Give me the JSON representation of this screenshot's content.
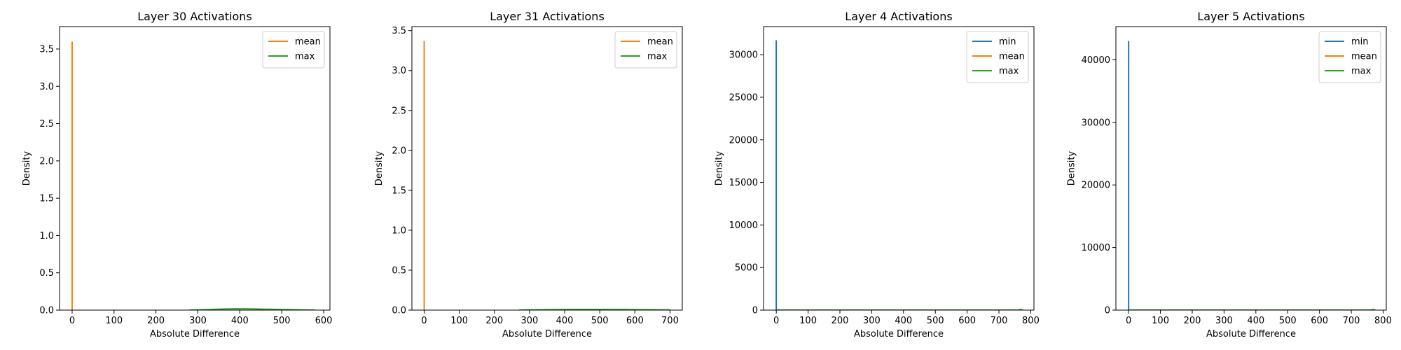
{
  "colors": {
    "min": "#1f77b4",
    "mean": "#ff7f0e",
    "max": "#2ca02c",
    "axes": "#000000",
    "background": "#ffffff"
  },
  "chart_data": [
    {
      "type": "line",
      "title": "Layer 30 Activations",
      "xlabel": "Absolute Difference",
      "ylabel": "Density",
      "xlim": [
        -30,
        615
      ],
      "ylim": [
        0,
        3.8
      ],
      "xticks": [
        0,
        100,
        200,
        300,
        400,
        500,
        600
      ],
      "yticks": [
        0.0,
        0.5,
        1.0,
        1.5,
        2.0,
        2.5,
        3.0,
        3.5
      ],
      "ytick_labels": [
        "0.0",
        "0.5",
        "1.0",
        "1.5",
        "2.0",
        "2.5",
        "3.0",
        "3.5"
      ],
      "legend_position": "upper right",
      "grid": false,
      "series": [
        {
          "name": "mean",
          "color": "#ff7f0e",
          "x": [
            0,
            0,
            0
          ],
          "y": [
            0,
            3.6,
            0
          ]
        },
        {
          "name": "max",
          "color": "#2ca02c",
          "x": [
            280,
            300,
            330,
            360,
            390,
            420,
            460,
            500,
            540,
            580
          ],
          "y": [
            0,
            0.002,
            0.008,
            0.014,
            0.018,
            0.016,
            0.012,
            0.008,
            0.004,
            0
          ]
        }
      ]
    },
    {
      "type": "line",
      "title": "Layer 31 Activations",
      "xlabel": "Absolute Difference",
      "ylabel": "Density",
      "xlim": [
        -35,
        735
      ],
      "ylim": [
        0,
        3.55
      ],
      "xticks": [
        0,
        100,
        200,
        300,
        400,
        500,
        600,
        700
      ],
      "yticks": [
        0.0,
        0.5,
        1.0,
        1.5,
        2.0,
        2.5,
        3.0,
        3.5
      ],
      "ytick_labels": [
        "0.0",
        "0.5",
        "1.0",
        "1.5",
        "2.0",
        "2.5",
        "3.0",
        "3.5"
      ],
      "legend_position": "upper right",
      "grid": false,
      "series": [
        {
          "name": "mean",
          "color": "#ff7f0e",
          "x": [
            0,
            0,
            0
          ],
          "y": [
            0,
            3.37,
            0
          ]
        },
        {
          "name": "max",
          "color": "#2ca02c",
          "x": [
            270,
            300,
            350,
            400,
            450,
            500,
            550,
            600,
            650,
            700
          ],
          "y": [
            0,
            0.003,
            0.006,
            0.008,
            0.009,
            0.009,
            0.008,
            0.006,
            0.004,
            0.002
          ]
        }
      ]
    },
    {
      "type": "line",
      "title": "Layer 4 Activations",
      "xlabel": "Absolute Difference",
      "ylabel": "Density",
      "xlim": [
        -40,
        810
      ],
      "ylim": [
        0,
        33300
      ],
      "xticks": [
        0,
        100,
        200,
        300,
        400,
        500,
        600,
        700,
        800
      ],
      "yticks": [
        0,
        5000,
        10000,
        15000,
        20000,
        25000,
        30000
      ],
      "ytick_labels": [
        "0",
        "5000",
        "10000",
        "15000",
        "20000",
        "25000",
        "30000"
      ],
      "legend_position": "upper right",
      "grid": false,
      "series": [
        {
          "name": "min",
          "color": "#1f77b4",
          "x": [
            0,
            0,
            0
          ],
          "y": [
            0,
            31700,
            0
          ]
        },
        {
          "name": "mean",
          "color": "#ff7f0e",
          "x": [
            0,
            0
          ],
          "y": [
            0,
            0
          ]
        },
        {
          "name": "max",
          "color": "#2ca02c",
          "x": [
            0,
            760,
            770,
            775
          ],
          "y": [
            0,
            0,
            80,
            0
          ]
        }
      ]
    },
    {
      "type": "line",
      "title": "Layer 5 Activations",
      "xlabel": "Absolute Difference",
      "ylabel": "Density",
      "xlim": [
        -40,
        810
      ],
      "ylim": [
        0,
        45300
      ],
      "xticks": [
        0,
        100,
        200,
        300,
        400,
        500,
        600,
        700,
        800
      ],
      "yticks": [
        0,
        10000,
        20000,
        30000,
        40000
      ],
      "ytick_labels": [
        "0",
        "10000",
        "20000",
        "30000",
        "40000"
      ],
      "legend_position": "upper right",
      "grid": false,
      "series": [
        {
          "name": "min",
          "color": "#1f77b4",
          "x": [
            0,
            0,
            0
          ],
          "y": [
            0,
            43000,
            0
          ]
        },
        {
          "name": "mean",
          "color": "#ff7f0e",
          "x": [
            0,
            0
          ],
          "y": [
            0,
            0
          ]
        },
        {
          "name": "max",
          "color": "#2ca02c",
          "x": [
            0,
            760,
            770,
            775
          ],
          "y": [
            0,
            0,
            100,
            0
          ]
        }
      ]
    }
  ]
}
